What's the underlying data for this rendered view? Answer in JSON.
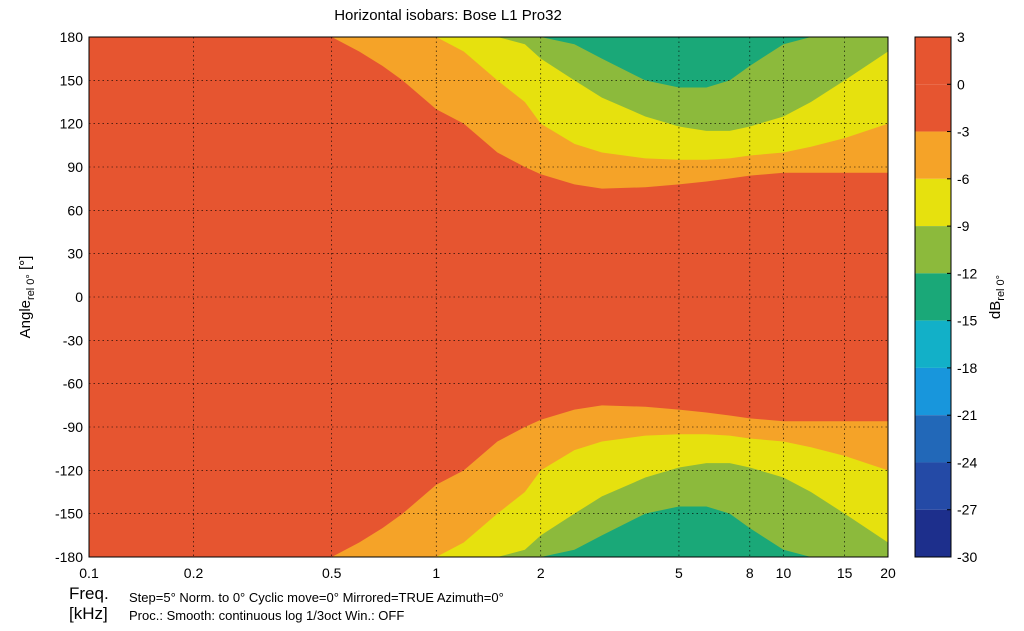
{
  "chart_data": {
    "type": "heatmap",
    "title": "Horizontal isobars: Bose  L1 Pro32",
    "ylabel_main": "Angle",
    "ylabel_sub": "rel 0°",
    "ylabel_unit": " [°]",
    "colorbar_label_main": "dB",
    "colorbar_label_sub": "rel 0°",
    "x_scale": "log",
    "xlim": [
      0.1,
      20
    ],
    "ylim": [
      -180,
      180
    ],
    "x_ticks": [
      {
        "value": 0.1,
        "label": "0.1"
      },
      {
        "value": 0.2,
        "label": "0.2"
      },
      {
        "value": 0.5,
        "label": "0.5"
      },
      {
        "value": 1,
        "label": "1"
      },
      {
        "value": 2,
        "label": "2"
      },
      {
        "value": 5,
        "label": "5"
      },
      {
        "value": 8,
        "label": "8"
      },
      {
        "value": 10,
        "label": "10"
      },
      {
        "value": 15,
        "label": "15"
      },
      {
        "value": 20,
        "label": "20"
      }
    ],
    "y_ticks": [
      {
        "value": 180,
        "label": "180"
      },
      {
        "value": 150,
        "label": "150"
      },
      {
        "value": 120,
        "label": "120"
      },
      {
        "value": 90,
        "label": "90"
      },
      {
        "value": 60,
        "label": "60"
      },
      {
        "value": 30,
        "label": "30"
      },
      {
        "value": 0,
        "label": "0"
      },
      {
        "value": -30,
        "label": "-30"
      },
      {
        "value": -60,
        "label": "-60"
      },
      {
        "value": -90,
        "label": "-90"
      },
      {
        "value": -120,
        "label": "-120"
      },
      {
        "value": -150,
        "label": "-150"
      },
      {
        "value": -180,
        "label": "-180"
      }
    ],
    "grid": true,
    "symmetric_about_zero": true,
    "colorbar": [
      {
        "from": 0,
        "to": 3,
        "color": "#e65530"
      },
      {
        "from": -3,
        "to": 0,
        "color": "#e65530"
      },
      {
        "from": -6,
        "to": -3,
        "color": "#f5a328"
      },
      {
        "from": -9,
        "to": -6,
        "color": "#e6e10e"
      },
      {
        "from": -12,
        "to": -9,
        "color": "#8cba3c"
      },
      {
        "from": -15,
        "to": -12,
        "color": "#1aa878"
      },
      {
        "from": -18,
        "to": -15,
        "color": "#12b0c8"
      },
      {
        "from": -21,
        "to": -18,
        "color": "#1896dc"
      },
      {
        "from": -24,
        "to": -21,
        "color": "#2268b8"
      },
      {
        "from": -27,
        "to": -24,
        "color": "#244aa6"
      },
      {
        "from": -30,
        "to": -27,
        "color": "#1d2f8c"
      }
    ],
    "colorbar_ticks": [
      "3",
      "0",
      "-3",
      "-6",
      "-9",
      "-12",
      "-15",
      "-18",
      "-21",
      "-24",
      "-27",
      "-30"
    ],
    "isobar_contours_deg": {
      "x": [
        0.1,
        0.15,
        0.17,
        0.2,
        0.25,
        0.3,
        0.4,
        0.5,
        0.6,
        0.7,
        0.8,
        1.0,
        1.2,
        1.5,
        1.8,
        2.0,
        2.5,
        3.0,
        4.0,
        5.0,
        6.0,
        7.0,
        8.0,
        10.0,
        12.0,
        15.0,
        20.0
      ],
      "levels": [
        {
          "level_db": -3,
          "angle": [
            180,
            180,
            180,
            180,
            180,
            180,
            180,
            180,
            170,
            160,
            150,
            130,
            120,
            100,
            90,
            85,
            78,
            75,
            76,
            78,
            80,
            82,
            84,
            86,
            86,
            86,
            86
          ]
        },
        {
          "level_db": -6,
          "angle": [
            181,
            181,
            181,
            181,
            181,
            181,
            181,
            181,
            181,
            181,
            181,
            181,
            170,
            150,
            135,
            120,
            106,
            100,
            96,
            95,
            95,
            96,
            98,
            100,
            104,
            110,
            120
          ]
        },
        {
          "level_db": -9,
          "angle": [
            182,
            182,
            182,
            182,
            182,
            182,
            182,
            182,
            182,
            182,
            182,
            182,
            182,
            182,
            175,
            165,
            150,
            138,
            125,
            118,
            115,
            115,
            118,
            125,
            135,
            150,
            170
          ]
        },
        {
          "level_db": -12,
          "angle": [
            183,
            183,
            183,
            183,
            183,
            183,
            183,
            183,
            183,
            183,
            183,
            183,
            183,
            183,
            183,
            183,
            175,
            165,
            150,
            145,
            145,
            150,
            160,
            175,
            183,
            183,
            183
          ]
        }
      ]
    },
    "footer": {
      "freq_label": "Freq.",
      "unit_label": "[kHz]",
      "line1": "Step=5°   Norm. to 0°   Cyclic move=0°   Mirrored=TRUE   Azimuth=0°",
      "line2": "Proc.: Smooth: continuous log 1/3oct    Win.: OFF"
    }
  }
}
